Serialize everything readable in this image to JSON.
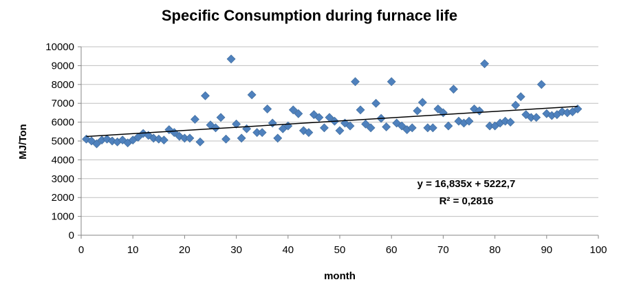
{
  "chart_data": {
    "type": "scatter",
    "title": "Specific Consumption during furnace life",
    "xlabel": "month",
    "ylabel": "MJ/Ton",
    "xlim": [
      0,
      100
    ],
    "ylim": [
      0,
      10000
    ],
    "x_ticks": [
      "0",
      "10",
      "20",
      "30",
      "40",
      "50",
      "60",
      "70",
      "80",
      "90",
      "100"
    ],
    "y_ticks": [
      "0",
      "1000",
      "2000",
      "3000",
      "4000",
      "5000",
      "6000",
      "7000",
      "8000",
      "9000",
      "10000"
    ],
    "grid": "horizontal major gridlines",
    "legend": "none",
    "marker": "diamond",
    "marker_color": "#4F81BD",
    "trendline_color": "#000000",
    "series": [
      {
        "x": [
          1,
          2,
          3,
          4,
          5,
          6,
          7,
          8,
          9,
          10,
          11,
          12,
          13,
          14,
          15,
          16,
          17,
          18,
          19,
          20,
          21,
          22,
          23,
          24,
          25,
          26,
          27,
          28,
          29,
          30,
          31,
          32,
          33,
          34,
          35,
          36,
          37,
          38,
          39,
          40,
          41,
          42,
          43,
          44,
          45,
          46,
          47,
          48,
          49,
          50,
          51,
          52,
          53,
          54,
          55,
          56,
          57,
          58,
          59,
          60,
          61,
          62,
          63,
          64,
          65,
          66,
          67,
          68,
          69,
          70,
          71,
          72,
          73,
          74,
          75,
          76,
          77,
          78,
          79,
          80,
          81,
          82,
          83,
          84,
          85,
          86,
          87,
          88,
          89,
          90,
          91,
          92,
          93,
          94,
          95,
          96
        ],
        "y": [
          5100,
          5000,
          4850,
          5050,
          5100,
          5000,
          4950,
          5050,
          4900,
          5050,
          5200,
          5400,
          5300,
          5150,
          5100,
          5050,
          5600,
          5450,
          5250,
          5150,
          5150,
          6150,
          4950,
          7400,
          5850,
          5700,
          6250,
          5100,
          9350,
          5900,
          5150,
          5650,
          7450,
          5450,
          5450,
          6700,
          5950,
          5150,
          5650,
          5800,
          6650,
          6450,
          5550,
          5450,
          6400,
          6250,
          5700,
          6250,
          6050,
          5550,
          5950,
          5800,
          8150,
          6650,
          5900,
          5700,
          7000,
          6200,
          5750,
          8150,
          5950,
          5800,
          5600,
          5700,
          6600,
          7050,
          5700,
          5700,
          6700,
          6500,
          5800,
          7750,
          6050,
          5950,
          6050,
          6700,
          6600,
          9100,
          5800,
          5800,
          5950,
          6050,
          6000,
          6900,
          7350,
          6400,
          6250,
          6250,
          8000,
          6450,
          6350,
          6400,
          6550,
          6500,
          6550,
          6700
        ]
      }
    ],
    "trendline": {
      "slope": 16.835,
      "intercept": 5222.7,
      "x_range": [
        1,
        96
      ],
      "equation": "y = 16,835x + 5222,7",
      "r_squared": "R² = 0,2816"
    }
  }
}
